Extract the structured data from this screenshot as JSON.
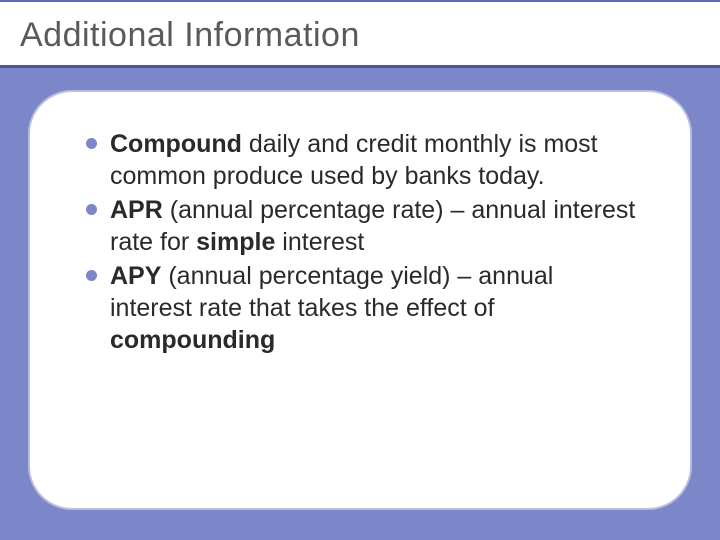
{
  "slide": {
    "title": "Additional Information",
    "background_color": "#7b87c9",
    "title_bar_bg": "#ffffff",
    "title_color": "#5a5a5a",
    "title_fontsize": 34,
    "divider_color": "#4a56a0",
    "content_box": {
      "bg": "#ffffff",
      "border_color": "#b8bedd",
      "border_radius": 44
    },
    "bullet_color": "#7b87c9",
    "body_fontsize": 25,
    "text_color": "#2a2a2a",
    "bullets": [
      {
        "segments": [
          {
            "text": "Compound",
            "bold": true
          },
          {
            "text": " daily and credit monthly is most common produce used by banks today.",
            "bold": false
          }
        ]
      },
      {
        "segments": [
          {
            "text": "APR",
            "bold": true
          },
          {
            "text": " (annual percentage rate) – annual interest rate for ",
            "bold": false
          },
          {
            "text": "simple",
            "bold": true
          },
          {
            "text": " interest",
            "bold": false
          }
        ]
      },
      {
        "segments": [
          {
            "text": "APY",
            "bold": true
          },
          {
            "text": " (annual percentage yield) – annual interest rate that takes the effect of ",
            "bold": false
          },
          {
            "text": "compounding",
            "bold": true
          }
        ]
      }
    ]
  }
}
